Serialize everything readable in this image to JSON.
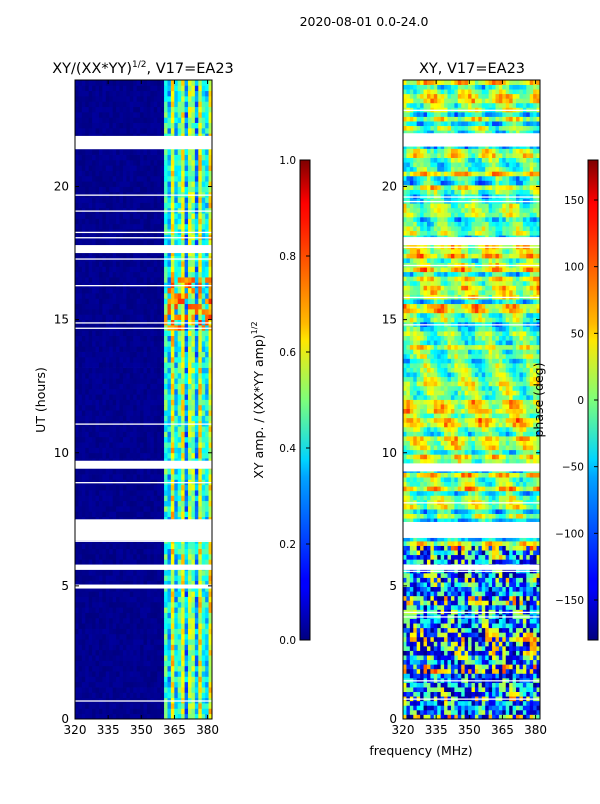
{
  "suptitle": "2020-08-01 0.0-24.0",
  "shared_xlabel": "frequency (MHz)",
  "chart_data": [
    {
      "type": "heatmap",
      "title": "XY/(XX*YY)",
      "title_sup": "1/2",
      "title_tail": ", V17=EA23",
      "xlabel": "frequency (MHz)",
      "ylabel": "UT (hours)",
      "xlim": [
        320,
        382
      ],
      "ylim": [
        0,
        24
      ],
      "xticks": [
        320,
        335,
        350,
        365,
        380
      ],
      "yticks": [
        0,
        5,
        10,
        15,
        20
      ],
      "colorbar": {
        "label": "XY amp. / (XX*YY amp)",
        "label_sup": "1/2",
        "range": [
          0.0,
          1.0
        ],
        "ticks": [
          "0.0",
          "0.2",
          "0.4",
          "0.6",
          "0.8",
          "1.0"
        ],
        "tick_values": [
          0.0,
          0.2,
          0.4,
          0.6,
          0.8,
          1.0
        ]
      },
      "flagged_ut_bands": [
        [
          21.4,
          21.9
        ],
        [
          17.5,
          17.8
        ],
        [
          9.4,
          9.7
        ],
        [
          6.7,
          7.5
        ],
        [
          5.6,
          5.8
        ],
        [
          4.9,
          5.05
        ]
      ],
      "active_freq_range": [
        360,
        382
      ],
      "typical_value_low_band": 0.0,
      "typical_value_high_band": 0.45,
      "peak_value": 0.85,
      "peak_ut_range": [
        14.5,
        16.5
      ]
    },
    {
      "type": "heatmap",
      "title": "XY, V17=EA23",
      "xlabel": "frequency (MHz)",
      "ylabel": "",
      "xlim": [
        320,
        382
      ],
      "ylim": [
        0,
        24
      ],
      "xticks": [
        320,
        335,
        350,
        365,
        380
      ],
      "yticks": [
        0,
        5,
        10,
        15,
        20
      ],
      "colorbar": {
        "label": "phase (deg)",
        "range": [
          -180,
          180
        ],
        "ticks": [
          "−150",
          "−100",
          "−50",
          "0",
          "50",
          "100",
          "150"
        ],
        "tick_values": [
          -150,
          -100,
          -50,
          0,
          50,
          100,
          150
        ]
      },
      "flagged_ut_bands": [
        [
          21.5,
          22.0
        ],
        [
          17.8,
          18.1
        ],
        [
          9.3,
          9.6
        ],
        [
          6.8,
          7.4
        ],
        [
          5.6,
          5.8
        ]
      ],
      "typical_phase_deg": [
        -60,
        60
      ]
    }
  ]
}
